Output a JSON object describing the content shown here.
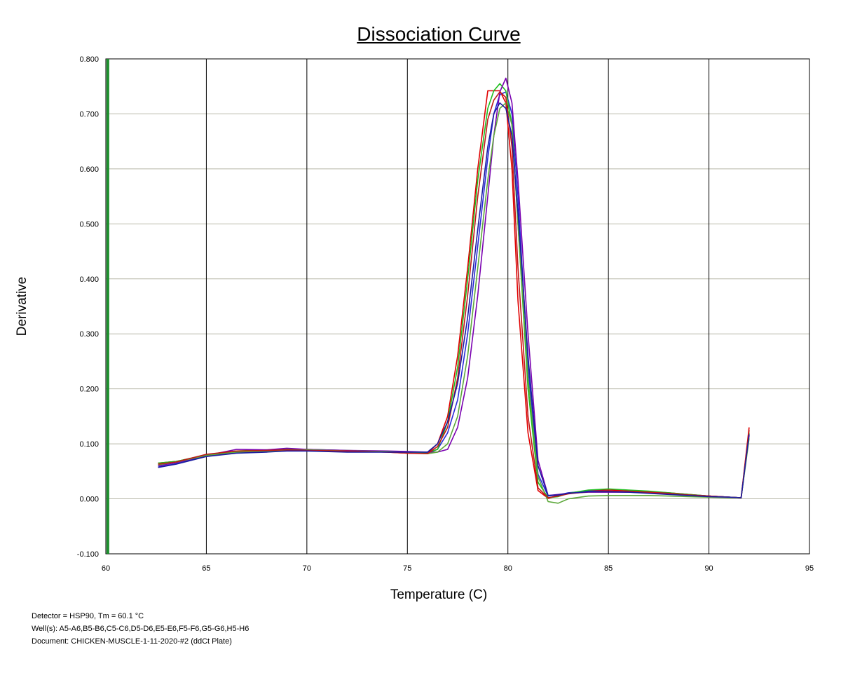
{
  "chart_data": {
    "type": "line",
    "title": "Dissociation Curve",
    "xlabel": "Temperature (C)",
    "ylabel": "Derivative",
    "xlim": [
      60,
      95
    ],
    "ylim": [
      -0.1,
      0.8
    ],
    "xticks": [
      60,
      65,
      70,
      75,
      80,
      85,
      90,
      95
    ],
    "xtick_labels": [
      "60",
      "65",
      "70",
      "75",
      "80",
      "85",
      "90",
      "95"
    ],
    "yticks": [
      -0.1,
      0,
      0.1,
      0.2,
      0.3,
      0.4,
      0.5,
      0.6,
      0.7,
      0.8
    ],
    "ytick_labels": [
      "-0.100",
      "0.000",
      "0.100",
      "0.200",
      "0.300",
      "0.400",
      "0.500",
      "0.600",
      "0.700",
      "0.800"
    ],
    "grid": true,
    "threshold_line": {
      "x": 60.1,
      "color": "#1e8f2e"
    },
    "x": [
      62.6,
      63.5,
      65,
      66.5,
      68,
      69,
      70,
      72,
      74,
      75,
      76,
      76.5,
      77,
      77.5,
      78,
      78.5,
      79,
      79.3,
      79.6,
      79.9,
      80.2,
      80.5,
      81,
      81.5,
      82,
      82.5,
      83,
      84,
      85,
      86,
      87,
      88,
      89,
      90,
      91,
      91.6,
      92
    ],
    "series": [
      {
        "color": "#e00000",
        "values": [
          0.065,
          0.068,
          0.08,
          0.086,
          0.088,
          0.09,
          0.089,
          0.087,
          0.085,
          0.083,
          0.083,
          0.1,
          0.15,
          0.26,
          0.42,
          0.6,
          0.742,
          0.742,
          0.742,
          0.72,
          0.6,
          0.36,
          0.12,
          0.015,
          0.001,
          0.006,
          0.01,
          0.015,
          0.016,
          0.015,
          0.013,
          0.011,
          0.008,
          0.005,
          0.003,
          0.002,
          0.13
        ]
      },
      {
        "color": "#2a2ad8",
        "values": [
          0.058,
          0.064,
          0.078,
          0.084,
          0.086,
          0.087,
          0.087,
          0.086,
          0.086,
          0.085,
          0.084,
          0.09,
          0.12,
          0.18,
          0.3,
          0.46,
          0.62,
          0.7,
          0.735,
          0.74,
          0.7,
          0.55,
          0.24,
          0.045,
          0.005,
          0.007,
          0.011,
          0.014,
          0.014,
          0.013,
          0.011,
          0.009,
          0.007,
          0.005,
          0.003,
          0.002,
          0.118
        ]
      },
      {
        "color": "#1fbf1f",
        "values": [
          0.065,
          0.068,
          0.08,
          0.087,
          0.089,
          0.09,
          0.09,
          0.088,
          0.086,
          0.085,
          0.083,
          0.09,
          0.14,
          0.24,
          0.4,
          0.58,
          0.71,
          0.742,
          0.755,
          0.742,
          0.68,
          0.5,
          0.2,
          0.03,
          0.002,
          0.004,
          0.01,
          0.016,
          0.018,
          0.016,
          0.014,
          0.011,
          0.008,
          0.005,
          0.003,
          0.002,
          0.12
        ]
      },
      {
        "color": "#7a00b0",
        "values": [
          0.06,
          0.066,
          0.079,
          0.09,
          0.089,
          0.092,
          0.09,
          0.088,
          0.087,
          0.086,
          0.085,
          0.085,
          0.09,
          0.13,
          0.22,
          0.37,
          0.55,
          0.66,
          0.74,
          0.765,
          0.72,
          0.58,
          0.3,
          0.07,
          0.006,
          0.008,
          0.01,
          0.012,
          0.012,
          0.012,
          0.011,
          0.009,
          0.007,
          0.005,
          0.003,
          0.002,
          0.115
        ]
      },
      {
        "color": "#5ca83a",
        "values": [
          0.062,
          0.067,
          0.079,
          0.085,
          0.087,
          0.088,
          0.089,
          0.087,
          0.086,
          0.084,
          0.082,
          0.085,
          0.1,
          0.15,
          0.26,
          0.42,
          0.58,
          0.66,
          0.71,
          0.72,
          0.68,
          0.5,
          0.22,
          0.04,
          -0.005,
          -0.008,
          0.0,
          0.005,
          0.006,
          0.006,
          0.006,
          0.005,
          0.004,
          0.003,
          0.002,
          0.002,
          0.11
        ]
      },
      {
        "color": "#c01818",
        "values": [
          0.063,
          0.067,
          0.081,
          0.087,
          0.088,
          0.089,
          0.088,
          0.087,
          0.085,
          0.083,
          0.082,
          0.095,
          0.13,
          0.22,
          0.37,
          0.55,
          0.69,
          0.725,
          0.74,
          0.73,
          0.64,
          0.42,
          0.15,
          0.02,
          0.002,
          0.005,
          0.009,
          0.013,
          0.014,
          0.013,
          0.012,
          0.01,
          0.007,
          0.005,
          0.003,
          0.002,
          0.125
        ]
      },
      {
        "color": "#1c1ca0",
        "values": [
          0.057,
          0.063,
          0.077,
          0.083,
          0.085,
          0.087,
          0.087,
          0.085,
          0.085,
          0.085,
          0.085,
          0.1,
          0.14,
          0.21,
          0.33,
          0.49,
          0.64,
          0.7,
          0.72,
          0.71,
          0.66,
          0.52,
          0.26,
          0.06,
          0.006,
          0.007,
          0.01,
          0.013,
          0.013,
          0.012,
          0.01,
          0.008,
          0.006,
          0.004,
          0.003,
          0.002,
          0.117
        ]
      }
    ]
  },
  "footer": {
    "line1": "Detector = HSP90, Tm = 60.1 °C",
    "line2": "Well(s): A5-A6,B5-B6,C5-C6,D5-D6,E5-E6,F5-F6,G5-G6,H5-H6",
    "line3": "Document: CHICKEN-MUSCLE-1-11-2020-#2 (ddCt Plate)"
  }
}
